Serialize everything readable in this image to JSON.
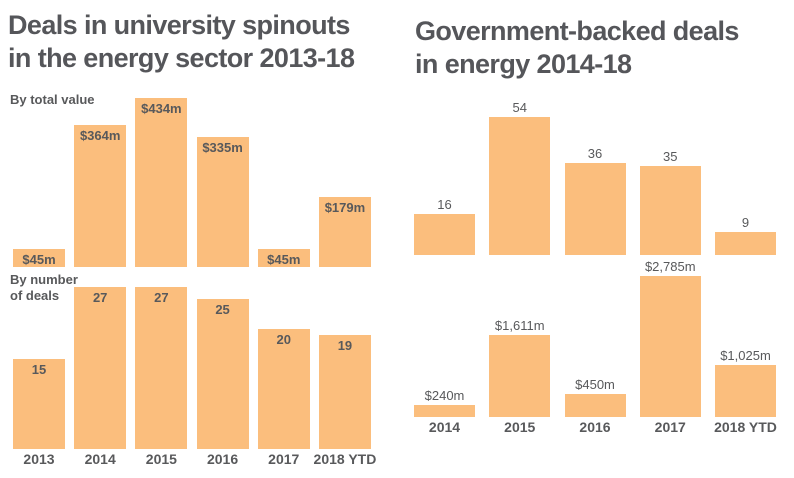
{
  "colors": {
    "bar_fill": "#fbbe7d",
    "label_text": "#58595b",
    "title_text": "#55565a",
    "background": "#ffffff"
  },
  "left_panel": {
    "title_line1": "Deals in university spinouts",
    "title_line2": "in the energy sector 2013-18",
    "value_chart_subtitle": "By total value",
    "count_chart_subtitle_line1": "By number",
    "count_chart_subtitle_line2": "of deals"
  },
  "right_panel": {
    "title_line1": "Government-backed deals",
    "title_line2": "in energy 2014-18"
  },
  "chart_data": [
    {
      "id": "left-by-total-value",
      "type": "bar",
      "panel_title": "Deals in university spinouts in the energy sector 2013-18",
      "subtitle": "By total value",
      "categories": [
        "2013",
        "2014",
        "2015",
        "2016",
        "2017",
        "2018 YTD"
      ],
      "values": [
        45,
        364,
        434,
        335,
        45,
        179
      ],
      "labels": [
        "$45m",
        "$364m",
        "$434m",
        "$335m",
        "$45m",
        "$179m"
      ],
      "unit": "$m",
      "ylim": [
        0,
        434
      ],
      "label_position": "inside-top",
      "x_axis_shown": false,
      "grid": false,
      "legend": false
    },
    {
      "id": "left-by-number-of-deals",
      "type": "bar",
      "panel_title": "Deals in university spinouts in the energy sector 2013-18",
      "subtitle": "By number of deals",
      "categories": [
        "2013",
        "2014",
        "2015",
        "2016",
        "2017",
        "2018 YTD"
      ],
      "values": [
        15,
        27,
        27,
        25,
        20,
        19
      ],
      "labels": [
        "15",
        "27",
        "27",
        "25",
        "20",
        "19"
      ],
      "unit": "deals",
      "ylim": [
        0,
        27
      ],
      "label_position": "inside-top",
      "x_axis_shown": true,
      "grid": false,
      "legend": false
    },
    {
      "id": "right-deal-count",
      "type": "bar",
      "panel_title": "Government-backed deals in energy 2014-18",
      "categories": [
        "2014",
        "2015",
        "2016",
        "2017",
        "2018 YTD"
      ],
      "values": [
        16,
        54,
        36,
        35,
        9
      ],
      "labels": [
        "16",
        "54",
        "36",
        "35",
        "9"
      ],
      "unit": "deals",
      "ylim": [
        0,
        54
      ],
      "label_position": "above",
      "x_axis_shown": false,
      "grid": false,
      "legend": false
    },
    {
      "id": "right-deal-value",
      "type": "bar",
      "panel_title": "Government-backed deals in energy 2014-18",
      "categories": [
        "2014",
        "2015",
        "2016",
        "2017",
        "2018 YTD"
      ],
      "values": [
        240,
        1611,
        450,
        2785,
        1025
      ],
      "labels": [
        "$240m",
        "$1,611m",
        "$450m",
        "$2,785m",
        "$1,025m"
      ],
      "unit": "$m",
      "ylim": [
        0,
        2785
      ],
      "label_position": "above",
      "x_axis_shown": true,
      "grid": false,
      "legend": false
    }
  ]
}
